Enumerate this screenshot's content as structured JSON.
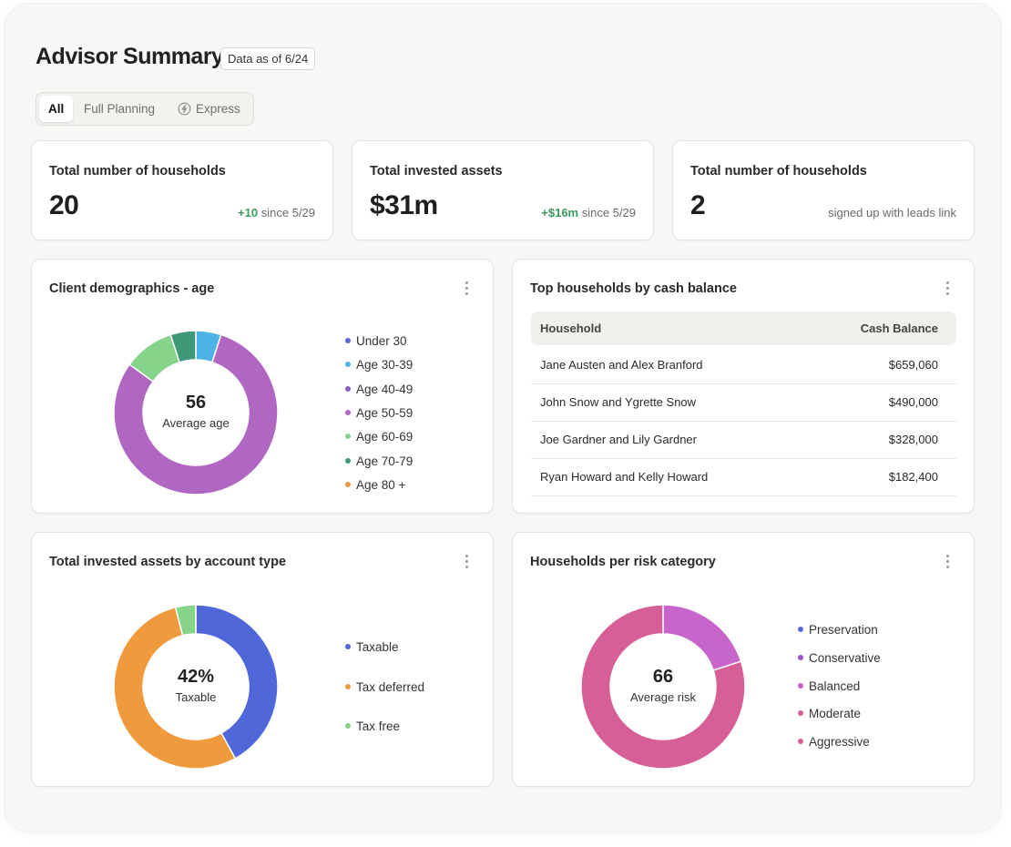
{
  "header": {
    "title": "Advisor Summary",
    "date_badge": "Data as of 6/24"
  },
  "filter_tabs": [
    {
      "label": "All",
      "active": true
    },
    {
      "label": "Full Planning",
      "active": false
    },
    {
      "label": "Express",
      "active": false,
      "icon": "lightning-icon"
    }
  ],
  "stats": [
    {
      "label": "Total number of households",
      "value": "20",
      "delta": "+10",
      "note": "since 5/29"
    },
    {
      "label": "Total invested assets",
      "value": "$31m",
      "delta": "+$16m",
      "note": "since 5/29"
    },
    {
      "label": "Total number of households",
      "value": "2",
      "delta": "",
      "note": "signed up with leads link"
    }
  ],
  "age_card": {
    "title": "Client demographics - age",
    "center_value": "56",
    "center_label": "Average age",
    "legend": [
      {
        "label": "Under 30",
        "color": "#5b6bd6"
      },
      {
        "label": "Age 30-39",
        "color": "#4db3e6"
      },
      {
        "label": "Age 40-49",
        "color": "#8a5cc6"
      },
      {
        "label": "Age 50-59",
        "color": "#b067c2"
      },
      {
        "label": "Age 60-69",
        "color": "#86d38a"
      },
      {
        "label": "Age 70-79",
        "color": "#3f9876"
      },
      {
        "label": "Age 80 +",
        "color": "#ef9a3c"
      }
    ]
  },
  "cash_card": {
    "title": "Top households by cash balance",
    "col_household": "Household",
    "col_balance": "Cash Balance",
    "rows": [
      {
        "household": "Jane Austen and Alex Branford",
        "balance": "$659,060"
      },
      {
        "household": "John Snow and Ygrette Snow",
        "balance": "$490,000"
      },
      {
        "household": "Joe Gardner and Lily Gardner",
        "balance": "$328,000"
      },
      {
        "household": "Ryan Howard and Kelly Howard",
        "balance": "$182,400"
      }
    ]
  },
  "account_card": {
    "title": "Total invested assets by account type",
    "center_value": "42%",
    "center_label": "Taxable",
    "legend": [
      {
        "label": "Taxable",
        "color": "#4f67d8"
      },
      {
        "label": "Tax deferred",
        "color": "#ef9a3c"
      },
      {
        "label": "Tax free",
        "color": "#86d38a"
      }
    ]
  },
  "risk_card": {
    "title": "Households per risk category",
    "center_value": "66",
    "center_label": "Average risk",
    "legend": [
      {
        "label": "Preservation",
        "color": "#5b6bd6"
      },
      {
        "label": "Conservative",
        "color": "#9a55c0"
      },
      {
        "label": "Balanced",
        "color": "#c865cb"
      },
      {
        "label": "Moderate",
        "color": "#d65f97"
      },
      {
        "label": "Aggressive",
        "color": "#d65f97"
      }
    ]
  },
  "chart_data": [
    {
      "type": "pie",
      "title": "Client demographics - age",
      "categories": [
        "Under 30",
        "Age 30-39",
        "Age 40-49",
        "Age 50-59",
        "Age 60-69",
        "Age 70-79",
        "Age 80 +"
      ],
      "values": [
        0,
        5,
        0,
        80,
        10,
        5,
        0
      ],
      "colors": [
        "#5b6bd6",
        "#4db3e6",
        "#8a5cc6",
        "#b067c2",
        "#86d38a",
        "#3f9876",
        "#ef9a3c"
      ]
    },
    {
      "type": "pie",
      "title": "Total invested assets by account type",
      "categories": [
        "Taxable",
        "Tax deferred",
        "Tax free"
      ],
      "values": [
        42,
        54,
        4
      ],
      "colors": [
        "#4f67d8",
        "#ef9a3c",
        "#86d38a"
      ]
    },
    {
      "type": "pie",
      "title": "Households per risk category",
      "categories": [
        "Preservation",
        "Conservative",
        "Balanced",
        "Moderate",
        "Aggressive"
      ],
      "values": [
        0,
        0,
        20,
        80,
        0
      ],
      "colors": [
        "#5b6bd6",
        "#9a55c0",
        "#c865cb",
        "#d65f97",
        "#d65f97"
      ]
    }
  ]
}
